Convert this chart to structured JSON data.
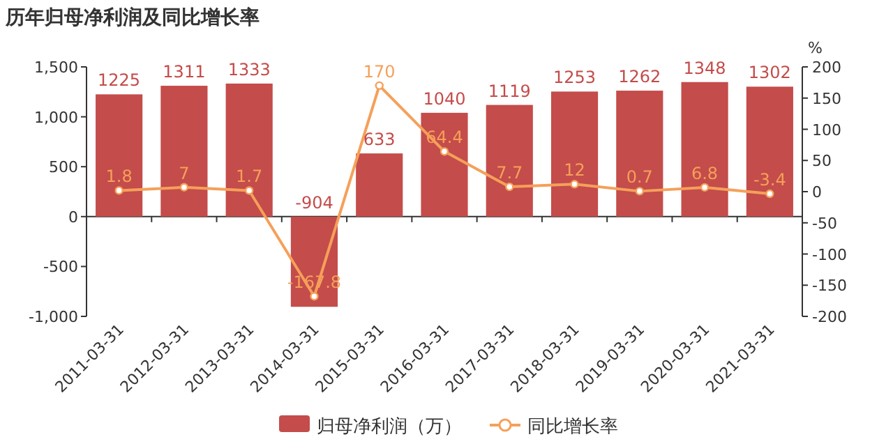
{
  "chart_data": {
    "type": "bar",
    "title": "历年归母净利润及同比增长率",
    "y2label": "%",
    "categories": [
      "2011-03-31",
      "2012-03-31",
      "2013-03-31",
      "2014-03-31",
      "2015-03-31",
      "2016-03-31",
      "2017-03-31",
      "2018-03-31",
      "2019-03-31",
      "2020-03-31",
      "2021-03-31"
    ],
    "series": [
      {
        "name": "归母净利润（万）",
        "color": "#c44c4a",
        "values": [
          1225,
          1311,
          1333,
          -904,
          633,
          1040,
          1119,
          1253,
          1262,
          1348,
          1302
        ]
      },
      {
        "name": "同比增长率",
        "type": "line",
        "axis": "y2",
        "color": "#f5a05a",
        "marker": "circle",
        "values": [
          1.8,
          7,
          1.7,
          -167.8,
          170,
          64.4,
          7.7,
          12,
          0.7,
          6.8,
          -3.4
        ]
      }
    ],
    "ylim": [
      -1000,
      1500
    ],
    "yticks": [
      {
        "value": -1000,
        "label": "-1,000"
      },
      -500,
      0,
      500,
      {
        "value": 1000,
        "label": "1,000"
      },
      {
        "value": 1500,
        "label": "1,500"
      }
    ],
    "y2lim": [
      -200,
      200
    ],
    "y2ticks": [
      -200,
      -150,
      -100,
      -50,
      0,
      50,
      100,
      150,
      200
    ],
    "data_labels": true,
    "legend": "bottom"
  }
}
